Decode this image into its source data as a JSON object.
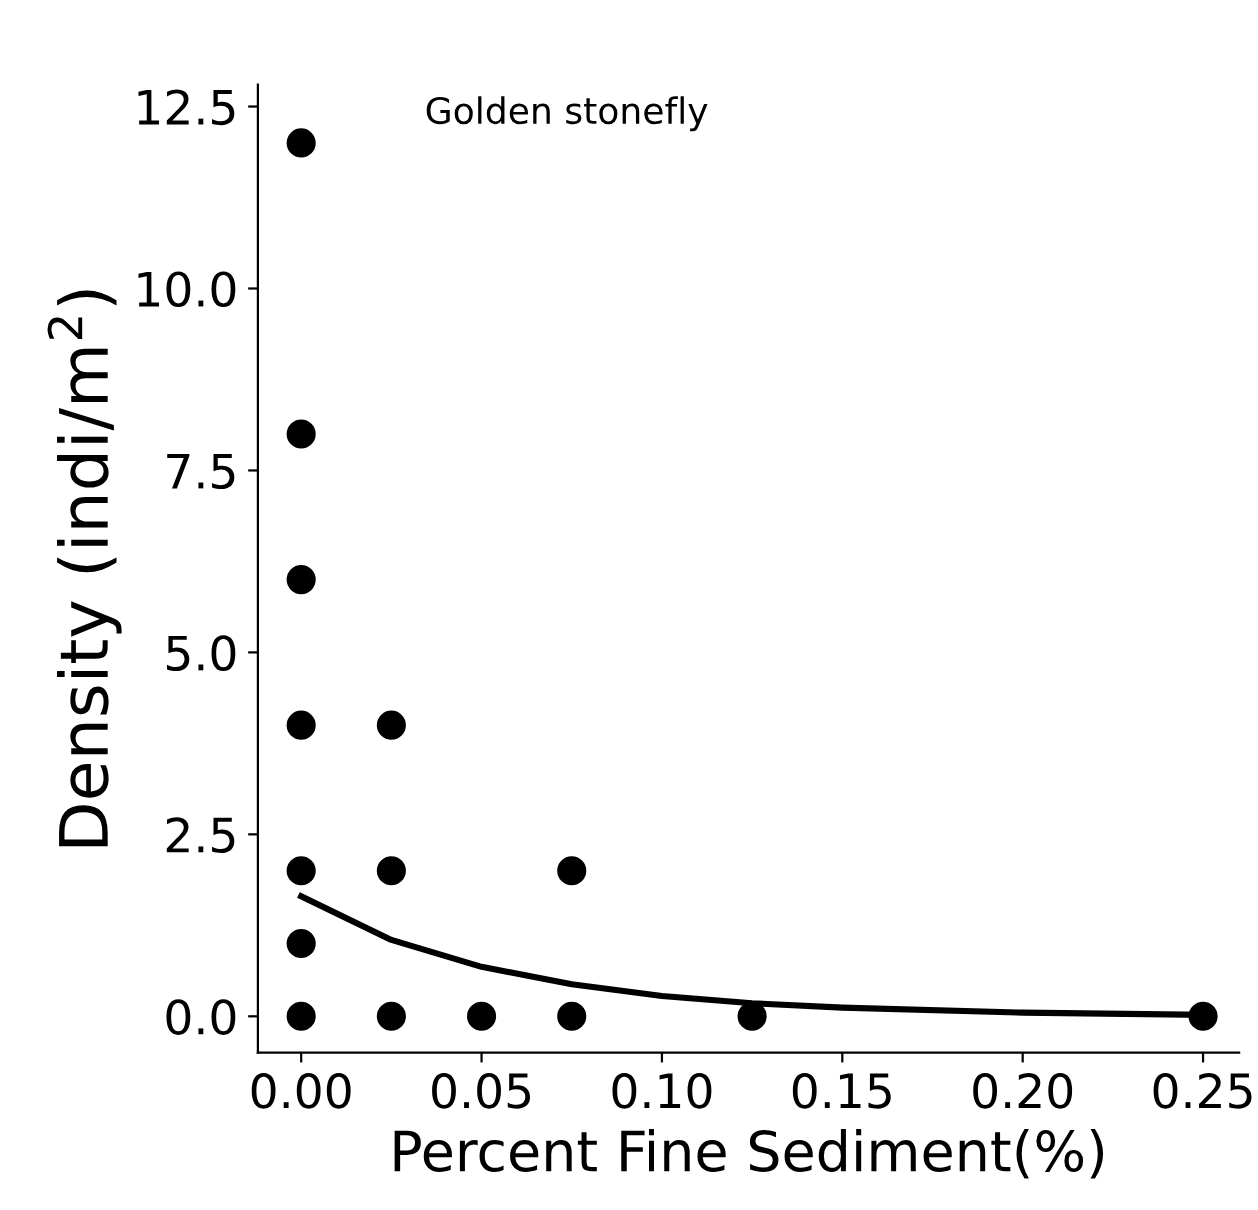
{
  "chart_data": {
    "type": "scatter",
    "xlabel": "Percent Fine Sediment(%)",
    "ylabel": "Density (indi/m$^{2}$)",
    "annotations": [
      "Golden stonefly"
    ],
    "series": [
      {
        "color": "#000000",
        "x": [
          0,
          0,
          0,
          0,
          0,
          0,
          0,
          0.025,
          0.025,
          0.025,
          0.05,
          0.075,
          0.075,
          0.125,
          0.25
        ],
        "values": [
          12,
          8,
          6,
          4,
          2,
          1,
          0,
          4,
          2,
          0,
          0,
          2,
          0,
          0,
          0
        ],
        "marker": "circle"
      },
      {
        "type": "line",
        "color": "#000000",
        "x": [
          0,
          0.025,
          0.05,
          0.075,
          0.1,
          0.125,
          0.15,
          0.2,
          0.25
        ],
        "values": [
          1.65,
          1.05,
          0.68,
          0.44,
          0.28,
          0.18,
          0.12,
          0.05,
          0.02
        ],
        "marker": "none"
      }
    ],
    "xlim": [
      -0.012,
      0.26
    ],
    "xticks": [
      {
        "value": 0,
        "label": "0.00"
      },
      {
        "value": 0.05,
        "label": "0.05"
      },
      {
        "value": 0.1,
        "label": "0.10"
      },
      {
        "value": 0.15,
        "label": "0.15"
      },
      {
        "value": 0.2,
        "label": "0.20"
      },
      {
        "value": 0.25,
        "label": "0.25"
      }
    ],
    "ylim": [
      -0.5,
      12.8
    ],
    "yticks": [
      {
        "value": 0,
        "label": "0.0"
      },
      {
        "value": 2.5,
        "label": "2.5"
      },
      {
        "value": 5,
        "label": "5.0"
      },
      {
        "value": 7.5,
        "label": "7.5"
      },
      {
        "value": 10,
        "label": "10.0"
      },
      {
        "value": 12.5,
        "label": "12.5"
      }
    ],
    "grid": false,
    "legend": false
  }
}
